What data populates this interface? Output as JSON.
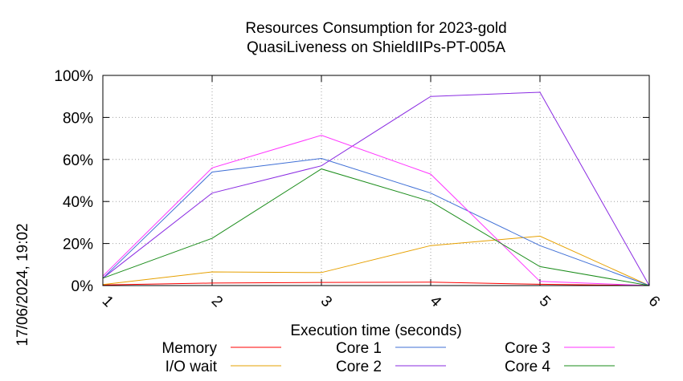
{
  "chart_data": {
    "type": "line",
    "title": "Resources Consumption for 2023-gold",
    "subtitle": "QuasiLiveness on ShieldIIPs-PT-005A",
    "xlabel": "Execution time (seconds)",
    "ylabel": "",
    "side_label": "17/06/2024, 19:02",
    "xlim": [
      1,
      6
    ],
    "ylim": [
      0,
      100
    ],
    "x_ticks": [
      "1",
      "2",
      "3",
      "4",
      "5",
      "6"
    ],
    "y_ticks": [
      "0%",
      "20%",
      "40%",
      "60%",
      "80%",
      "100%"
    ],
    "grid": true,
    "legend_position": "bottom",
    "x": [
      1,
      2,
      3,
      4,
      5,
      6
    ],
    "series": [
      {
        "name": "Memory",
        "color": "#ff0000",
        "values": [
          0.3,
          1.2,
          1.5,
          1.6,
          0.6,
          0
        ]
      },
      {
        "name": "I/O wait",
        "color": "#e6a000",
        "values": [
          0.5,
          6.5,
          6.2,
          19,
          23.5,
          0
        ]
      },
      {
        "name": "Core 1",
        "color": "#3f6fd6",
        "values": [
          3.5,
          54,
          60.5,
          44,
          19,
          0
        ]
      },
      {
        "name": "Core 2",
        "color": "#8a2be2",
        "values": [
          3.5,
          44,
          57,
          90,
          92,
          0
        ]
      },
      {
        "name": "Core 3",
        "color": "#ff33ff",
        "values": [
          4.5,
          56,
          71.5,
          53,
          2,
          0
        ]
      },
      {
        "name": "Core 4",
        "color": "#1a8c1a",
        "values": [
          3.5,
          22.5,
          55.5,
          40,
          9,
          0
        ]
      }
    ]
  }
}
